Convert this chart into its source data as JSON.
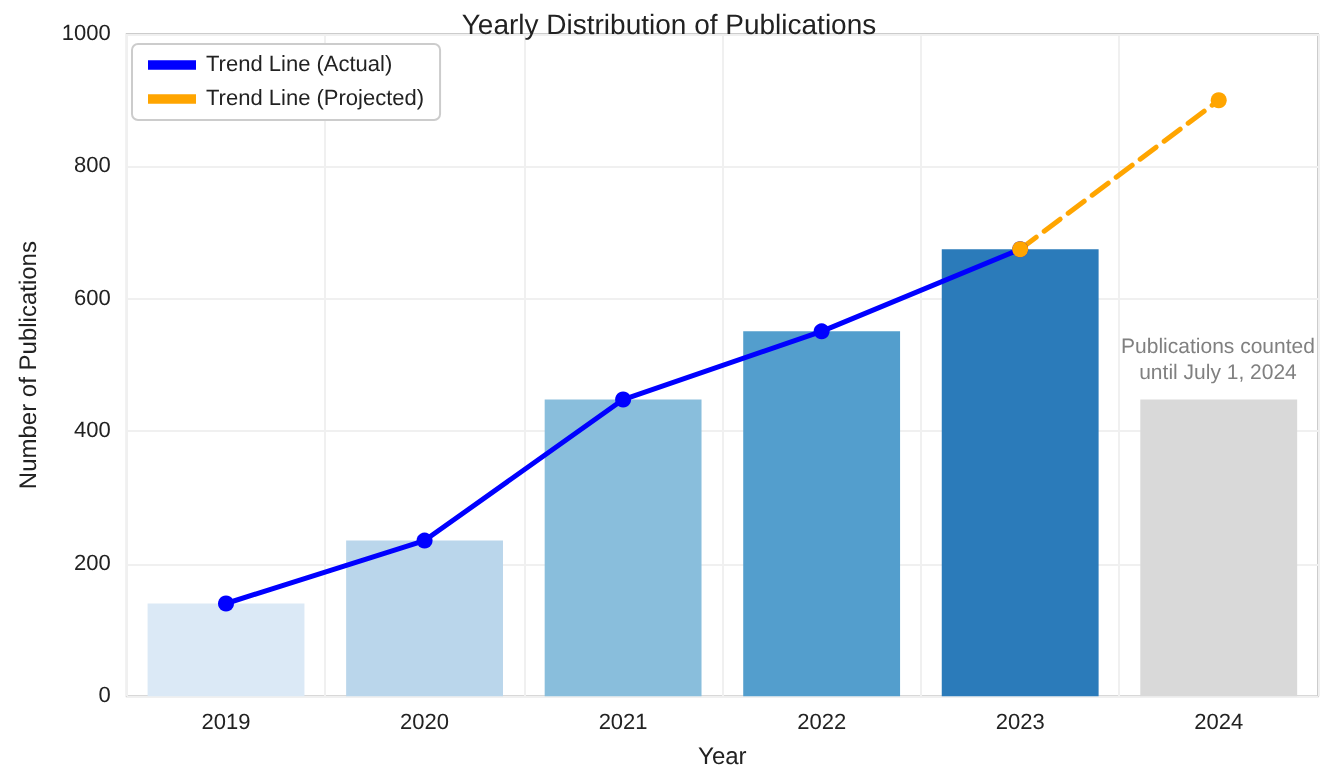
{
  "chart_data": {
    "type": "bar",
    "title": "Yearly Distribution of Publications",
    "xlabel": "Year",
    "ylabel": "Number of Publications",
    "categories": [
      "2019",
      "2020",
      "2021",
      "2022",
      "2023",
      "2024"
    ],
    "series": [
      {
        "values": [
          140,
          235,
          448,
          551,
          675,
          448
        ],
        "colors": [
          "#dbe9f6",
          "#bad6eb",
          "#89bedc",
          "#539ecd",
          "#2b7bba",
          "#d9d9d9"
        ]
      },
      {
        "type": "line",
        "name": "Trend Line (Actual)",
        "color": "#0000ff",
        "values": [
          140,
          235,
          448,
          551,
          675,
          null
        ],
        "line_style": "solid",
        "marker": "circle"
      },
      {
        "type": "line",
        "name": "Trend Line (Projected)",
        "color": "#ffa500",
        "values": [
          null,
          null,
          null,
          null,
          675,
          900
        ],
        "line_style": "dashed",
        "marker": "circle"
      }
    ],
    "annotations": [
      "Publications counted\nuntil July 1, 2024"
    ],
    "ylim": [
      0,
      1000
    ],
    "yticks": [
      0,
      200,
      400,
      600,
      800,
      1000
    ],
    "grid": true,
    "legend": "top left"
  }
}
